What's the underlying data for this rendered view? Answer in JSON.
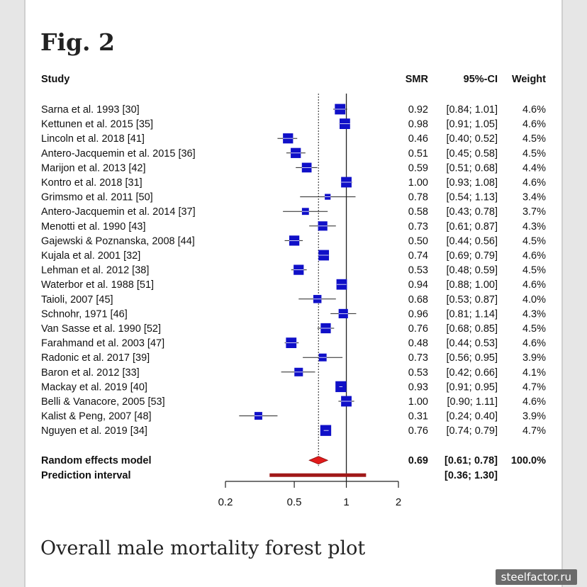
{
  "figure": {
    "label": "Fig. 2",
    "caption": "Overall male mortality forest plot"
  },
  "watermark": "steelfactor.ru",
  "chart_data": {
    "type": "forest",
    "scale": "log",
    "xlim": [
      0.2,
      2
    ],
    "xticks": [
      0.2,
      0.5,
      1,
      2
    ],
    "xtick_labels": [
      "0.2",
      "0.5",
      "1",
      "2"
    ],
    "reference_line": 1,
    "summary_line": 0.69,
    "columns": [
      "Study",
      "SMR",
      "95%-CI",
      "Weight"
    ],
    "studies": [
      {
        "study": "Sarna et al. 1993 [30]",
        "smr": 0.92,
        "lower": 0.84,
        "upper": 1.01,
        "smr_text": "0.92",
        "ci_text": "[0.84; 1.01]",
        "weight_text": "4.6%",
        "weight": 4.6
      },
      {
        "study": "Kettunen et al. 2015 [35]",
        "smr": 0.98,
        "lower": 0.91,
        "upper": 1.05,
        "smr_text": "0.98",
        "ci_text": "[0.91; 1.05]",
        "weight_text": "4.6%",
        "weight": 4.6
      },
      {
        "study": "Lincoln et al. 2018 [41]",
        "smr": 0.46,
        "lower": 0.4,
        "upper": 0.52,
        "smr_text": "0.46",
        "ci_text": "[0.40; 0.52]",
        "weight_text": "4.5%",
        "weight": 4.5
      },
      {
        "study": "Antero-Jacquemin et al. 2015 [36]",
        "smr": 0.51,
        "lower": 0.45,
        "upper": 0.58,
        "smr_text": "0.51",
        "ci_text": "[0.45; 0.58]",
        "weight_text": "4.5%",
        "weight": 4.5
      },
      {
        "study": "Marijon et al. 2013 [42]",
        "smr": 0.59,
        "lower": 0.51,
        "upper": 0.68,
        "smr_text": "0.59",
        "ci_text": "[0.51; 0.68]",
        "weight_text": "4.4%",
        "weight": 4.4
      },
      {
        "study": "Kontro et al. 2018 [31]",
        "smr": 1.0,
        "lower": 0.93,
        "upper": 1.08,
        "smr_text": "1.00",
        "ci_text": "[0.93; 1.08]",
        "weight_text": "4.6%",
        "weight": 4.6
      },
      {
        "study": "Grimsmo et al. 2011 [50]",
        "smr": 0.78,
        "lower": 0.54,
        "upper": 1.13,
        "smr_text": "0.78",
        "ci_text": "[0.54; 1.13]",
        "weight_text": "3.4%",
        "weight": 3.4
      },
      {
        "study": "Antero-Jacquemin et al. 2014 [37]",
        "smr": 0.58,
        "lower": 0.43,
        "upper": 0.78,
        "smr_text": "0.58",
        "ci_text": "[0.43; 0.78]",
        "weight_text": "3.7%",
        "weight": 3.7
      },
      {
        "study": "Menotti et al. 1990 [43]",
        "smr": 0.73,
        "lower": 0.61,
        "upper": 0.87,
        "smr_text": "0.73",
        "ci_text": "[0.61; 0.87]",
        "weight_text": "4.3%",
        "weight": 4.3
      },
      {
        "study": "Gajewski & Poznanska, 2008 [44]",
        "smr": 0.5,
        "lower": 0.44,
        "upper": 0.56,
        "smr_text": "0.50",
        "ci_text": "[0.44; 0.56]",
        "weight_text": "4.5%",
        "weight": 4.5
      },
      {
        "study": "Kujala et al. 2001 [32]",
        "smr": 0.74,
        "lower": 0.69,
        "upper": 0.79,
        "smr_text": "0.74",
        "ci_text": "[0.69; 0.79]",
        "weight_text": "4.6%",
        "weight": 4.6
      },
      {
        "study": "Lehman et al. 2012 [38]",
        "smr": 0.53,
        "lower": 0.48,
        "upper": 0.59,
        "smr_text": "0.53",
        "ci_text": "[0.48; 0.59]",
        "weight_text": "4.5%",
        "weight": 4.5
      },
      {
        "study": "Waterbor et al. 1988 [51]",
        "smr": 0.94,
        "lower": 0.88,
        "upper": 1.0,
        "smr_text": "0.94",
        "ci_text": "[0.88; 1.00]",
        "weight_text": "4.6%",
        "weight": 4.6
      },
      {
        "study": "Taioli, 2007 [45]",
        "smr": 0.68,
        "lower": 0.53,
        "upper": 0.87,
        "smr_text": "0.68",
        "ci_text": "[0.53; 0.87]",
        "weight_text": "4.0%",
        "weight": 4.0
      },
      {
        "study": "Schnohr, 1971 [46]",
        "smr": 0.96,
        "lower": 0.81,
        "upper": 1.14,
        "smr_text": "0.96",
        "ci_text": "[0.81; 1.14]",
        "weight_text": "4.3%",
        "weight": 4.3
      },
      {
        "study": "Van Sasse et al. 1990 [52]",
        "smr": 0.76,
        "lower": 0.68,
        "upper": 0.85,
        "smr_text": "0.76",
        "ci_text": "[0.68; 0.85]",
        "weight_text": "4.5%",
        "weight": 4.5
      },
      {
        "study": "Farahmand et al. 2003 [47]",
        "smr": 0.48,
        "lower": 0.44,
        "upper": 0.53,
        "smr_text": "0.48",
        "ci_text": "[0.44; 0.53]",
        "weight_text": "4.6%",
        "weight": 4.6
      },
      {
        "study": "Radonic et al. 2017 [39]",
        "smr": 0.73,
        "lower": 0.56,
        "upper": 0.95,
        "smr_text": "0.73",
        "ci_text": "[0.56; 0.95]",
        "weight_text": "3.9%",
        "weight": 3.9
      },
      {
        "study": "Baron et al. 2012 [33]",
        "smr": 0.53,
        "lower": 0.42,
        "upper": 0.66,
        "smr_text": "0.53",
        "ci_text": "[0.42; 0.66]",
        "weight_text": "4.1%",
        "weight": 4.1
      },
      {
        "study": "Mackay et al. 2019 [40]",
        "smr": 0.93,
        "lower": 0.91,
        "upper": 0.95,
        "smr_text": "0.93",
        "ci_text": "[0.91; 0.95]",
        "weight_text": "4.7%",
        "weight": 4.7
      },
      {
        "study": "Belli & Vanacore, 2005 [53]",
        "smr": 1.0,
        "lower": 0.9,
        "upper": 1.11,
        "smr_text": "1.00",
        "ci_text": "[0.90; 1.11]",
        "weight_text": "4.6%",
        "weight": 4.6
      },
      {
        "study": "Kalist & Peng, 2007 [48]",
        "smr": 0.31,
        "lower": 0.24,
        "upper": 0.4,
        "smr_text": "0.31",
        "ci_text": "[0.24; 0.40]",
        "weight_text": "3.9%",
        "weight": 3.9
      },
      {
        "study": "Nguyen et al. 2019 [34]",
        "smr": 0.76,
        "lower": 0.74,
        "upper": 0.79,
        "smr_text": "0.76",
        "ci_text": "[0.74; 0.79]",
        "weight_text": "4.7%",
        "weight": 4.7
      }
    ],
    "random_effects": {
      "label": "Random effects model",
      "smr": 0.69,
      "lower": 0.61,
      "upper": 0.78,
      "smr_text": "0.69",
      "ci_text": "[0.61; 0.78]",
      "weight_text": "100.0%"
    },
    "prediction_interval": {
      "label": "Prediction interval",
      "lower": 0.36,
      "upper": 1.3,
      "ci_text": "[0.36; 1.30]"
    },
    "colors": {
      "study_box": "#1010c8",
      "diamond": "#e11b1b",
      "prediction_bar": "#a01818",
      "axis": "#222222"
    }
  }
}
